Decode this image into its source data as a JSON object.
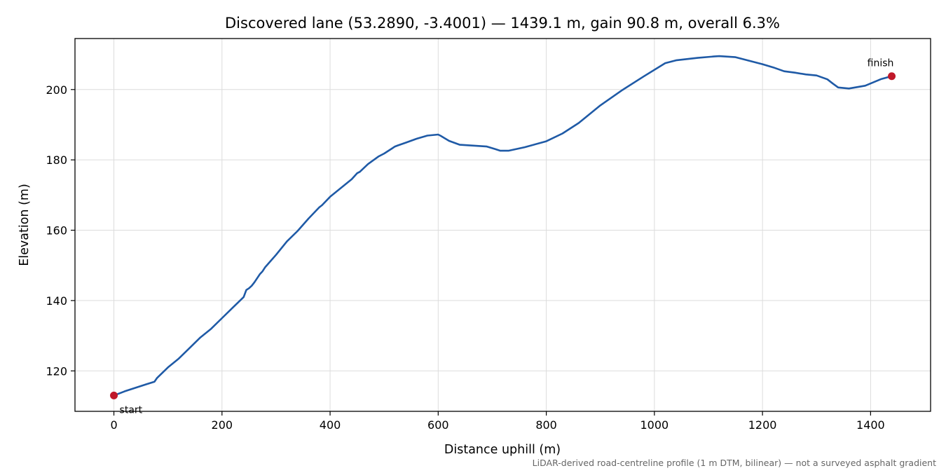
{
  "chart_data": {
    "type": "line",
    "title": "Discovered lane (53.2890, -3.4001) — 1439.1 m, gain 90.8 m, overall 6.3%",
    "xlabel": "Distance uphill (m)",
    "ylabel": "Elevation (m)",
    "xlim": [
      -72,
      1511
    ],
    "ylim": [
      108.5,
      214.5
    ],
    "x_ticks": [
      0,
      200,
      400,
      600,
      800,
      1000,
      1200,
      1400
    ],
    "x_tick_labels": [
      "0",
      "200",
      "400",
      "600",
      "800",
      "1000",
      "1200",
      "1400"
    ],
    "y_ticks": [
      120,
      140,
      160,
      180,
      200
    ],
    "y_tick_labels": [
      "120",
      "140",
      "160",
      "180",
      "200"
    ],
    "grid": true,
    "line_color": "#1f5aa6",
    "marker_color": "#c0182a",
    "series": [
      {
        "x": [
          0,
          20,
          40,
          60,
          75,
          80,
          100,
          120,
          140,
          160,
          180,
          200,
          220,
          240,
          245,
          250,
          255,
          260,
          270,
          275,
          280,
          300,
          320,
          340,
          360,
          380,
          385,
          400,
          420,
          440,
          450,
          455,
          470,
          490,
          500,
          515,
          520,
          525,
          540,
          560,
          580,
          600,
          605,
          620,
          640,
          660,
          690,
          705,
          715,
          730,
          760,
          800,
          830,
          860,
          900,
          940,
          980,
          1020,
          1040,
          1080,
          1110,
          1120,
          1150,
          1180,
          1200,
          1220,
          1240,
          1260,
          1280,
          1300,
          1320,
          1330,
          1340,
          1360,
          1390,
          1420,
          1439.1
        ],
        "y": [
          113.0,
          114.2,
          115.2,
          116.2,
          116.9,
          118.0,
          121.0,
          123.5,
          126.5,
          129.5,
          132.0,
          135.0,
          138.0,
          141.0,
          143.0,
          143.5,
          144.2,
          145.2,
          147.5,
          148.3,
          149.5,
          153.0,
          156.8,
          159.8,
          163.3,
          166.5,
          167.1,
          169.5,
          172.0,
          174.5,
          176.2,
          176.6,
          178.8,
          181.0,
          181.8,
          183.3,
          183.8,
          184.1,
          184.9,
          186.0,
          186.9,
          187.2,
          186.8,
          185.4,
          184.3,
          184.1,
          183.8,
          183.1,
          182.6,
          182.6,
          183.6,
          185.3,
          187.5,
          190.5,
          195.5,
          199.8,
          203.7,
          207.5,
          208.3,
          209.0,
          209.4,
          209.5,
          209.2,
          208.0,
          207.2,
          206.3,
          205.2,
          204.8,
          204.3,
          204.0,
          202.9,
          201.7,
          200.6,
          200.3,
          201.1,
          203.0,
          203.8
        ]
      }
    ],
    "annotations": [
      {
        "text": "start",
        "x": 0,
        "y": 113.0
      },
      {
        "text": "finish",
        "x": 1439.1,
        "y": 203.8
      }
    ],
    "footnote": "LiDAR-derived road-centreline profile (1 m DTM, bilinear) — not a surveyed asphalt gradient"
  }
}
